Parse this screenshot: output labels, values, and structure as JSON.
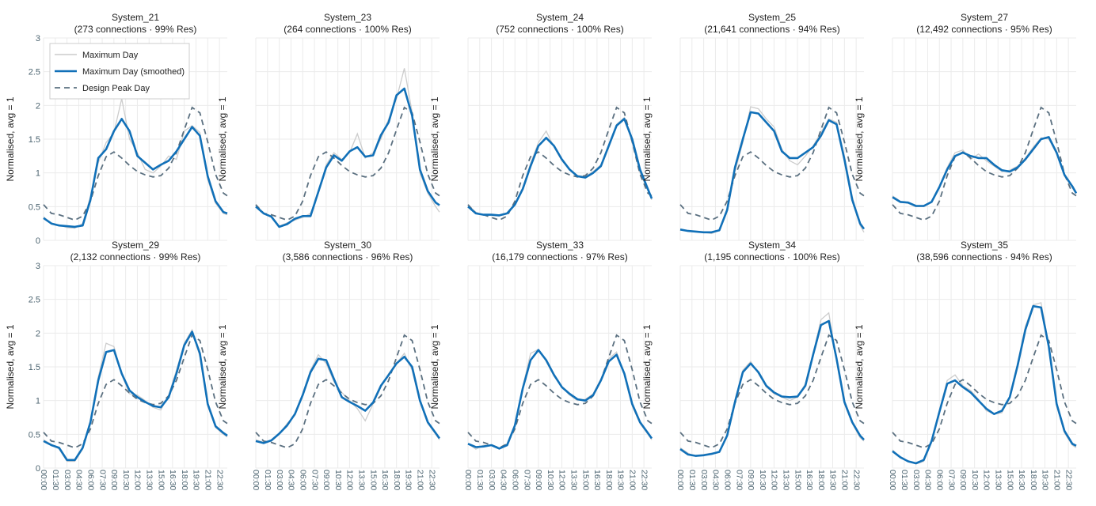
{
  "chart_data": {
    "type": "line",
    "ylabel": "Normalised, avg = 1",
    "ylim": [
      0,
      3
    ],
    "yticks": [
      "0",
      "0.5",
      "1",
      "1.5",
      "2",
      "2.5",
      "3"
    ],
    "xticks": [
      "00:00",
      "01:30",
      "03:00",
      "04:30",
      "06:00",
      "07:30",
      "09:00",
      "10:30",
      "12:00",
      "13:30",
      "15:00",
      "16:30",
      "18:00",
      "19:30",
      "21:00",
      "22:30"
    ],
    "grid": true,
    "legend": {
      "placement": "top-left of first panel",
      "entries": [
        {
          "label": "Maximum Day",
          "color": "#cccccc",
          "style": "solid-thin"
        },
        {
          "label": "Maximum Day (smoothed)",
          "color": "#1170b8",
          "style": "solid-thick"
        },
        {
          "label": "Design Peak Day",
          "color": "#5b7080",
          "style": "dashed"
        }
      ]
    },
    "x": [
      "00:00",
      "01:00",
      "02:00",
      "03:00",
      "04:00",
      "05:00",
      "06:00",
      "07:00",
      "08:00",
      "09:00",
      "10:00",
      "11:00",
      "12:00",
      "13:00",
      "14:00",
      "15:00",
      "16:00",
      "17:00",
      "18:00",
      "19:00",
      "20:00",
      "21:00",
      "22:00",
      "23:00",
      "23:30"
    ],
    "design_peak_day": [
      0.53,
      0.4,
      0.38,
      0.34,
      0.3,
      0.36,
      0.58,
      0.96,
      1.24,
      1.31,
      1.22,
      1.11,
      1.02,
      0.97,
      0.94,
      0.96,
      1.07,
      1.3,
      1.64,
      1.97,
      1.89,
      1.46,
      0.98,
      0.7,
      0.66
    ],
    "panels": [
      {
        "title": "System_21",
        "subtitle": "(273 connections · 99% Res)",
        "smoothed": [
          0.33,
          0.25,
          0.22,
          0.21,
          0.2,
          0.22,
          0.6,
          1.22,
          1.35,
          1.62,
          1.8,
          1.62,
          1.25,
          1.15,
          1.05,
          1.12,
          1.18,
          1.32,
          1.5,
          1.68,
          1.55,
          0.95,
          0.58,
          0.42,
          0.4
        ],
        "maximum": [
          0.35,
          0.24,
          0.23,
          0.19,
          0.18,
          0.25,
          0.65,
          1.15,
          1.45,
          1.6,
          2.1,
          1.5,
          1.3,
          1.05,
          1.0,
          1.1,
          1.25,
          1.2,
          1.62,
          1.7,
          1.6,
          0.9,
          0.55,
          0.4,
          0.38
        ]
      },
      {
        "title": "System_23",
        "subtitle": "(264 connections · 100% Res)",
        "smoothed": [
          0.5,
          0.4,
          0.35,
          0.2,
          0.24,
          0.32,
          0.36,
          0.36,
          0.72,
          1.08,
          1.26,
          1.18,
          1.32,
          1.38,
          1.24,
          1.26,
          1.56,
          1.75,
          2.15,
          2.25,
          1.85,
          1.05,
          0.73,
          0.56,
          0.52
        ],
        "maximum": [
          0.52,
          0.41,
          0.34,
          0.21,
          0.26,
          0.3,
          0.34,
          0.4,
          0.7,
          1.12,
          1.3,
          1.2,
          1.3,
          1.58,
          1.22,
          1.3,
          1.5,
          1.8,
          2.1,
          2.55,
          1.9,
          1.0,
          0.7,
          0.5,
          0.42
        ]
      },
      {
        "title": "System_24",
        "subtitle": "(752 connections · 100% Res)",
        "smoothed": [
          0.5,
          0.4,
          0.38,
          0.38,
          0.37,
          0.4,
          0.53,
          0.76,
          1.1,
          1.4,
          1.52,
          1.4,
          1.2,
          1.05,
          0.95,
          0.93,
          1.0,
          1.1,
          1.4,
          1.7,
          1.8,
          1.5,
          1.05,
          0.76,
          0.62
        ],
        "maximum": [
          0.52,
          0.42,
          0.37,
          0.37,
          0.36,
          0.41,
          0.55,
          0.78,
          1.14,
          1.45,
          1.62,
          1.38,
          1.18,
          1.05,
          0.96,
          0.95,
          1.02,
          1.12,
          1.38,
          1.72,
          1.82,
          1.45,
          1.0,
          0.74,
          0.6
        ]
      },
      {
        "title": "System_25",
        "subtitle": "(21,641 connections · 94% Res)",
        "smoothed": [
          0.16,
          0.14,
          0.13,
          0.12,
          0.12,
          0.15,
          0.45,
          1.08,
          1.5,
          1.9,
          1.88,
          1.75,
          1.62,
          1.32,
          1.22,
          1.22,
          1.3,
          1.38,
          1.55,
          1.78,
          1.72,
          1.2,
          0.6,
          0.25,
          0.17
        ],
        "maximum": [
          0.16,
          0.14,
          0.13,
          0.12,
          0.1,
          0.15,
          0.42,
          1.02,
          1.45,
          1.98,
          1.95,
          1.8,
          1.68,
          1.35,
          1.18,
          1.12,
          1.25,
          1.4,
          1.6,
          1.8,
          1.75,
          1.25,
          0.65,
          0.22,
          0.12
        ]
      },
      {
        "title": "System_27",
        "subtitle": "(12,492 connections · 95% Res)",
        "smoothed": [
          0.64,
          0.57,
          0.56,
          0.51,
          0.51,
          0.57,
          0.79,
          1.05,
          1.25,
          1.3,
          1.25,
          1.22,
          1.22,
          1.12,
          1.04,
          1.02,
          1.08,
          1.2,
          1.35,
          1.5,
          1.53,
          1.3,
          0.97,
          0.8,
          0.7
        ],
        "maximum": [
          0.66,
          0.58,
          0.55,
          0.5,
          0.5,
          0.56,
          0.8,
          1.08,
          1.3,
          1.34,
          1.2,
          1.28,
          1.18,
          1.1,
          1.02,
          1.04,
          1.1,
          1.22,
          1.38,
          1.52,
          1.5,
          1.28,
          0.95,
          0.78,
          0.69
        ]
      },
      {
        "title": "System_29",
        "subtitle": "(2,132 connections · 99% Res)",
        "smoothed": [
          0.4,
          0.34,
          0.3,
          0.12,
          0.12,
          0.3,
          0.68,
          1.3,
          1.72,
          1.75,
          1.4,
          1.15,
          1.05,
          0.98,
          0.92,
          0.9,
          1.05,
          1.4,
          1.82,
          2.02,
          1.7,
          0.95,
          0.62,
          0.52,
          0.48
        ],
        "maximum": [
          0.42,
          0.35,
          0.28,
          0.1,
          0.1,
          0.28,
          0.7,
          1.35,
          1.85,
          1.8,
          1.38,
          1.1,
          1.08,
          1.0,
          0.9,
          0.86,
          1.08,
          1.45,
          1.85,
          2.05,
          1.65,
          0.92,
          0.6,
          0.5,
          0.46
        ]
      },
      {
        "title": "System_30",
        "subtitle": "(3,586 connections · 96% Res)",
        "smoothed": [
          0.4,
          0.37,
          0.41,
          0.51,
          0.63,
          0.8,
          1.08,
          1.42,
          1.62,
          1.6,
          1.32,
          1.05,
          0.98,
          0.92,
          0.85,
          0.97,
          1.22,
          1.38,
          1.55,
          1.65,
          1.5,
          1.0,
          0.68,
          0.52,
          0.44
        ],
        "maximum": [
          0.42,
          0.38,
          0.4,
          0.5,
          0.66,
          0.78,
          1.1,
          1.45,
          1.68,
          1.55,
          1.28,
          1.12,
          1.0,
          0.88,
          0.7,
          0.95,
          1.2,
          1.4,
          1.55,
          1.7,
          1.45,
          0.98,
          0.66,
          0.5,
          0.42
        ]
      },
      {
        "title": "System_33",
        "subtitle": "(16,179 connections · 97% Res)",
        "smoothed": [
          0.36,
          0.31,
          0.32,
          0.34,
          0.29,
          0.34,
          0.63,
          1.18,
          1.6,
          1.75,
          1.6,
          1.38,
          1.2,
          1.1,
          1.02,
          1.0,
          1.08,
          1.3,
          1.58,
          1.68,
          1.4,
          0.95,
          0.68,
          0.52,
          0.44
        ],
        "maximum": [
          0.36,
          0.28,
          0.34,
          0.33,
          0.28,
          0.36,
          0.65,
          1.2,
          1.7,
          1.76,
          1.58,
          1.36,
          1.2,
          1.08,
          1.0,
          1.02,
          1.1,
          1.32,
          1.62,
          1.72,
          1.38,
          0.92,
          0.66,
          0.5,
          0.42
        ]
      },
      {
        "title": "System_34",
        "subtitle": "(1,195 connections · 100% Res)",
        "smoothed": [
          0.28,
          0.2,
          0.18,
          0.19,
          0.21,
          0.24,
          0.48,
          0.98,
          1.42,
          1.55,
          1.42,
          1.22,
          1.12,
          1.06,
          1.05,
          1.06,
          1.22,
          1.68,
          2.12,
          2.18,
          1.62,
          0.98,
          0.68,
          0.48,
          0.42
        ],
        "maximum": [
          0.3,
          0.22,
          0.17,
          0.2,
          0.22,
          0.23,
          0.5,
          1.0,
          1.45,
          1.58,
          1.4,
          1.2,
          1.1,
          1.05,
          1.0,
          1.05,
          1.25,
          1.7,
          2.2,
          2.3,
          1.6,
          0.95,
          0.66,
          0.45,
          0.4
        ]
      },
      {
        "title": "System_35",
        "subtitle": "(38,596 connections · 94% Res)",
        "smoothed": [
          0.25,
          0.16,
          0.1,
          0.07,
          0.12,
          0.4,
          0.83,
          1.25,
          1.3,
          1.2,
          1.12,
          1.0,
          0.88,
          0.8,
          0.85,
          1.05,
          1.52,
          2.05,
          2.4,
          2.38,
          1.8,
          0.95,
          0.55,
          0.36,
          0.33
        ],
        "maximum": [
          0.27,
          0.15,
          0.11,
          0.06,
          0.1,
          0.38,
          0.85,
          1.3,
          1.38,
          1.22,
          1.15,
          1.02,
          0.85,
          0.8,
          0.82,
          1.05,
          1.55,
          2.1,
          2.42,
          2.45,
          1.82,
          0.92,
          0.52,
          0.34,
          0.3
        ]
      }
    ]
  }
}
